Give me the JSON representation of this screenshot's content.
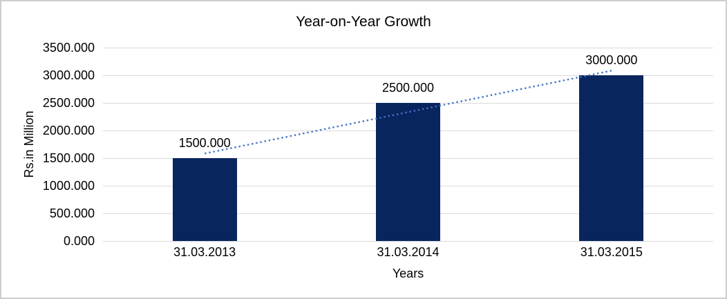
{
  "chart_data": {
    "type": "bar",
    "title": "Year-on-Year Growth",
    "xlabel": "Years",
    "ylabel": "Rs.in Million",
    "categories": [
      "31.03.2013",
      "31.03.2014",
      "31.03.2015"
    ],
    "values": [
      1500,
      2500,
      3000
    ],
    "data_labels": [
      "1500.000",
      "2500.000",
      "3000.000"
    ],
    "y_ticks": [
      "0.000",
      "500.000",
      "1000.000",
      "1500.000",
      "2000.000",
      "2500.000",
      "3000.000",
      "3500.000"
    ],
    "ylim": [
      0,
      3500
    ],
    "grid": true,
    "legend": false,
    "bar_color": "#08255E",
    "gridline_color": "#d9d9d9",
    "trendline": {
      "type": "linear",
      "style": "dotted",
      "color": "#4472C4",
      "start_value": 1583.333,
      "end_value": 3083.333
    }
  }
}
